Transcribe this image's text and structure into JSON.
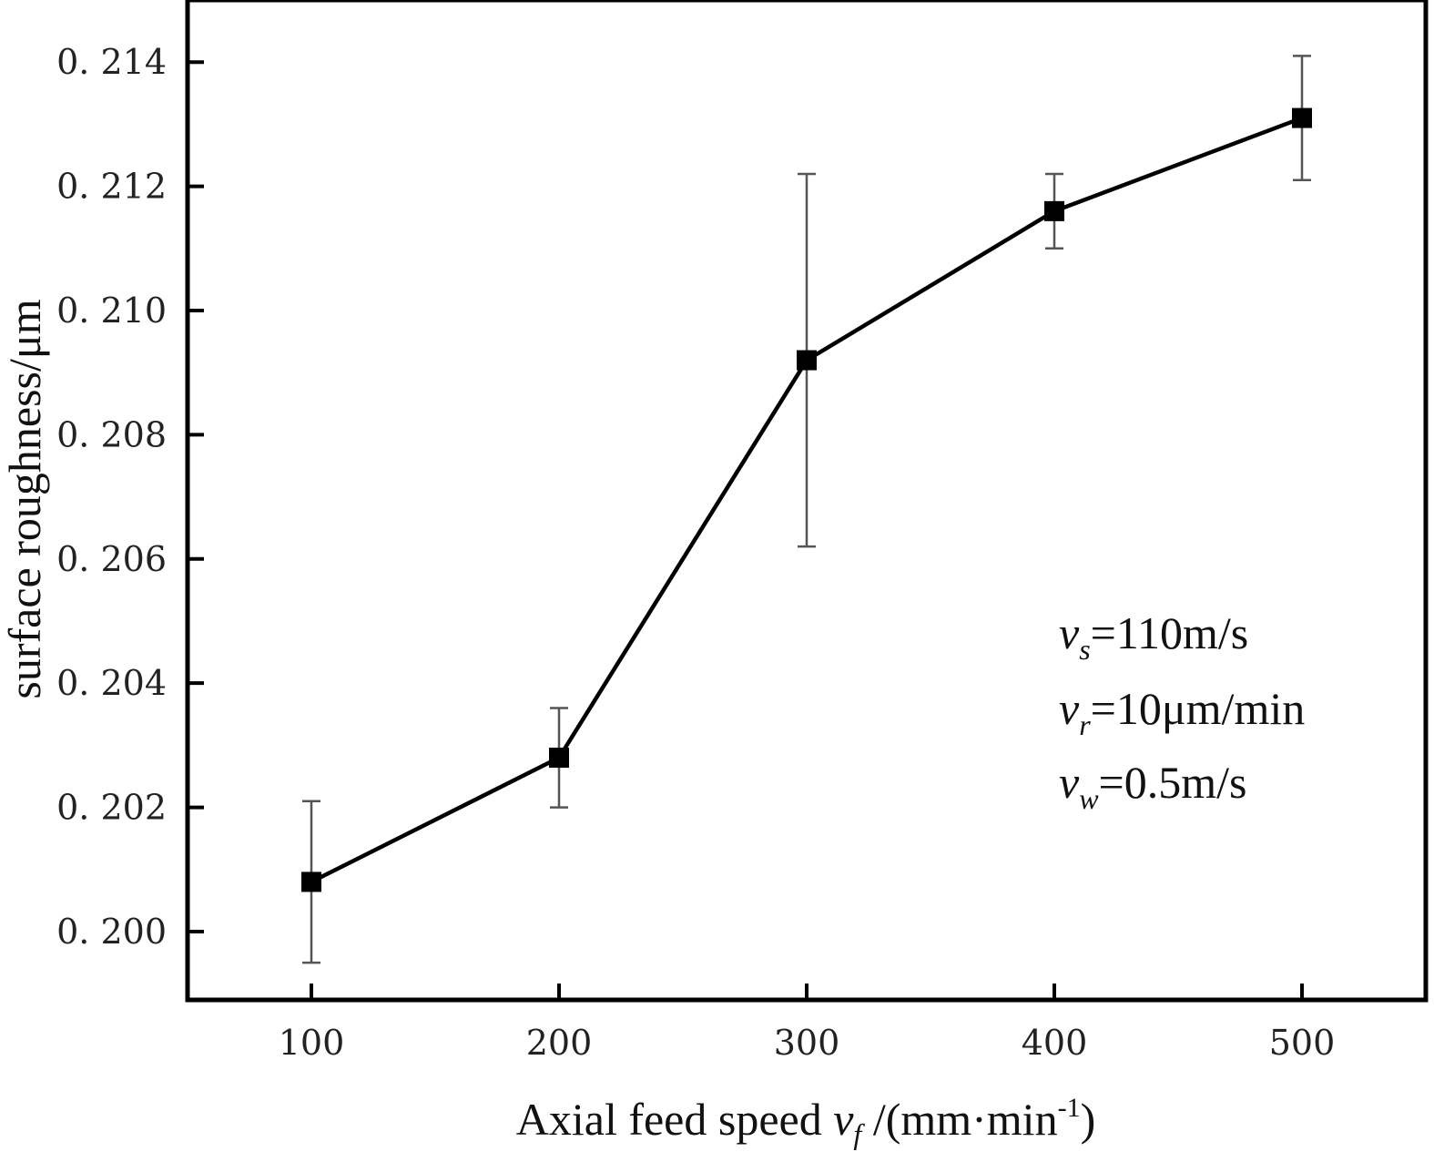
{
  "chart_data": {
    "type": "line",
    "title": "",
    "xlabel": {
      "text": "Axial feed speed ",
      "symbol": "v",
      "symbol_sub": "f",
      "unit_open": " /(mm·min",
      "unit_sup": "-1",
      "unit_close": ")"
    },
    "ylabel": "surface roughness/μm",
    "x": [
      100,
      200,
      300,
      400,
      500
    ],
    "series": [
      {
        "values": [
          0.2008,
          0.2028,
          0.2092,
          0.2116,
          0.2131
        ],
        "error_low": [
          0.1995,
          0.202,
          0.2062,
          0.211,
          0.2121
        ],
        "error_high": [
          0.2021,
          0.2036,
          0.2122,
          0.2122,
          0.2141
        ],
        "marker": "square",
        "color": "#000000"
      }
    ],
    "xlim": [
      50,
      550
    ],
    "ylim": [
      0.1989,
      0.215
    ],
    "xticks": [
      100,
      200,
      300,
      400,
      500
    ],
    "xtick_labels": [
      "100",
      "200",
      "300",
      "400",
      "500"
    ],
    "yticks": [
      0.2,
      0.202,
      0.204,
      0.206,
      0.208,
      0.21,
      0.212,
      0.214
    ],
    "ytick_labels": [
      "0. 200",
      "0. 202",
      "0. 204",
      "0. 206",
      "0. 208",
      "0. 210",
      "0. 212",
      "0. 214"
    ],
    "grid": false,
    "annotations": [
      {
        "symbol": "v",
        "sub": "s",
        "text": "=110m/s"
      },
      {
        "symbol": "v",
        "sub": "r",
        "text": "=10μm/min"
      },
      {
        "symbol": "v",
        "sub": "w",
        "text": "=0.5m/s"
      }
    ]
  }
}
